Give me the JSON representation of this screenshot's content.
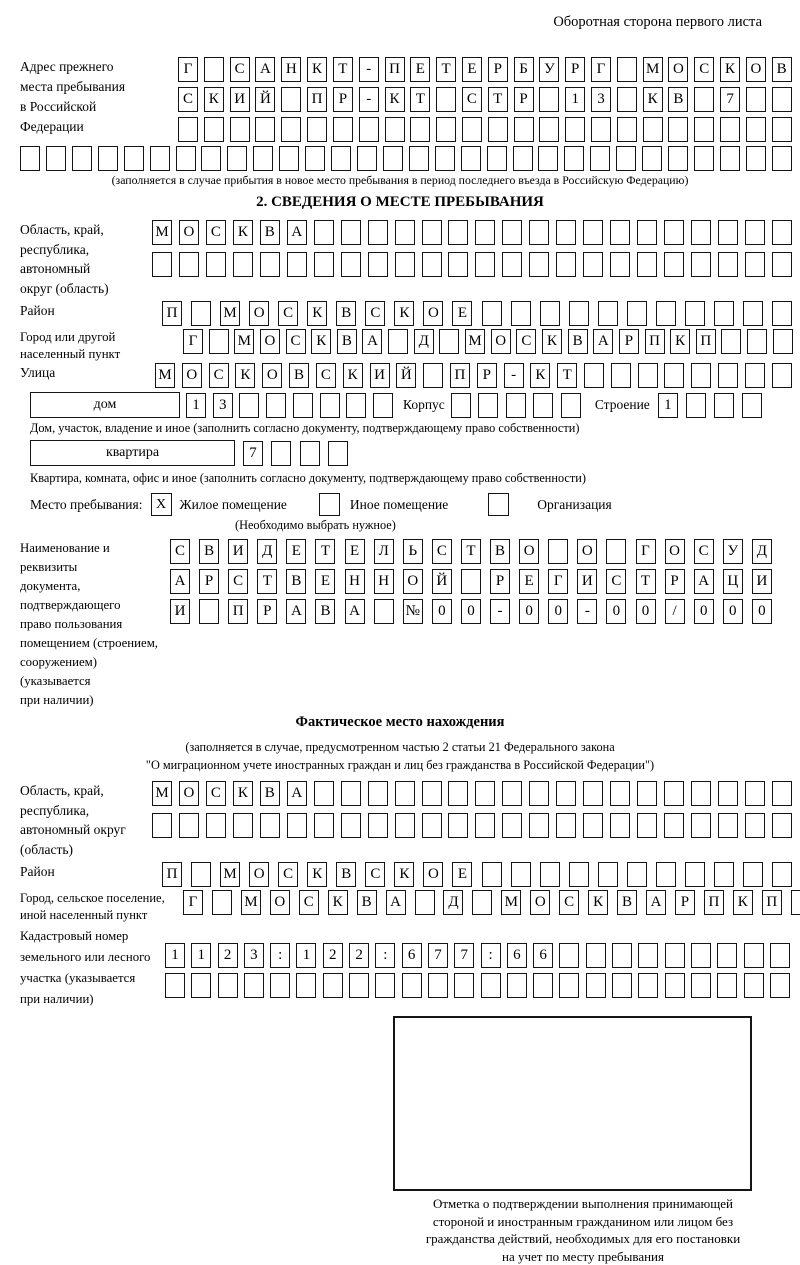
{
  "header": {
    "title": "Оборотная сторона первого листа"
  },
  "prev_address": {
    "label_lines": [
      "Адрес прежнего",
      "места пребывания",
      "в Российской",
      "Федерации"
    ],
    "rows": [
      {
        "t": "Г САНКТ-ПЕТЕРБУРГ МОСКОВ",
        "n": 24
      },
      {
        "t": "СКИЙ ПР-КТ СТР 13 КВ 7",
        "n": 24
      },
      {
        "t": "",
        "n": 24
      }
    ],
    "row_full": {
      "t": "",
      "n": 30
    },
    "caption": "(заполняется в случае прибытия в новое место пребывания в период последнего въезда в Российскую Федерацию)"
  },
  "section2": {
    "title": "2. СВЕДЕНИЯ О МЕСТЕ ПРЕБЫВАНИЯ",
    "region": {
      "label_lines": [
        "Область, край,",
        "республика,",
        "автономный",
        "округ (область)"
      ],
      "rows": [
        {
          "t": "МОСКВА",
          "n": 24
        },
        {
          "t": "",
          "n": 24
        }
      ]
    },
    "district": {
      "label": "Район",
      "row": {
        "t": "П МОСКВСКОЕ",
        "n": 22
      }
    },
    "city": {
      "label_lines": [
        "Город или другой",
        "населенный пункт"
      ],
      "row": {
        "t": "Г МОСКВА Д МОСКВАРПКП",
        "n": 24
      }
    },
    "street": {
      "label": "Улица",
      "row": {
        "t": "МОСКОВСКИЙ ПР-КТ",
        "n": 24
      }
    },
    "house": {
      "box_label": "дом",
      "cells": {
        "t": "13",
        "n": 8
      },
      "korpus_label": "Корпус",
      "korpus_cells": {
        "t": "",
        "n": 5
      },
      "stroenie_label": "Строение",
      "stroenie_cells": {
        "t": "1",
        "n": 4
      },
      "caption": "Дом, участок, владение и иное (заполнить согласно документу, подтверждающему право собственности)"
    },
    "apartment": {
      "box_label": "квартира",
      "cells": {
        "t": "7",
        "n": 4
      },
      "caption": "Квартира, комната, офис и иное (заполнить согласно документу, подтверждающему право собственности)"
    },
    "stay_type": {
      "label": "Место пребывания:",
      "options": [
        {
          "label": "Жилое помещение",
          "mark": "X"
        },
        {
          "label": "Иное помещение",
          "mark": ""
        },
        {
          "label": "Организация",
          "mark": ""
        }
      ],
      "caption": "(Необходимо выбрать нужное)"
    },
    "document": {
      "label_lines": [
        "Наименование и реквизиты",
        "документа, подтверждающего",
        "право пользования",
        "помещением (строением,",
        "сооружением) (указывается",
        "при наличии)"
      ],
      "rows": [
        {
          "t": "СВИДЕТЕЛЬСТВО О ГОСУД",
          "n": 21
        },
        {
          "t": "АРСТВЕННОЙ РЕГИСТРАЦИ",
          "n": 21
        },
        {
          "t": "И ПРАВА №00-00-00/000",
          "n": 21
        }
      ]
    }
  },
  "actual_location": {
    "title": "Фактическое место нахождения",
    "caption_lines": [
      "(заполняется в случае, предусмотренном частью 2 статьи 21 Федерального закона",
      "\"О миграционном учете иностранных граждан и лиц без гражданства в Российской Федерации\")"
    ],
    "region": {
      "label_lines": [
        "Область, край,",
        "республика,",
        "автономный округ",
        "(область)"
      ],
      "rows": [
        {
          "t": "МОСКВА",
          "n": 24
        },
        {
          "t": "",
          "n": 24
        }
      ]
    },
    "district": {
      "label": "Район",
      "row": {
        "t": "П МОСКВСКОЕ",
        "n": 22
      }
    },
    "city": {
      "label_lines": [
        "Город, сельское поселение,",
        "иной населенный пункт"
      ],
      "row": {
        "t": "Г МОСКВА Д МОСКВАРПКП",
        "n": 22
      }
    },
    "cadastral": {
      "label_lines": [
        "Кадастровый номер",
        "земельного или лесного",
        "участка (указывается",
        "при наличии)"
      ],
      "rows": [
        {
          "t": "1123:122:677:66",
          "n": 24
        },
        {
          "t": "",
          "n": 24
        }
      ]
    },
    "stamp_caption_lines": [
      "Отметка о подтверждении выполнения принимающей",
      "стороной и иностранным гражданином или лицом без",
      "гражданства действий, необходимых для его постановки",
      "на учет по месту пребывания"
    ]
  }
}
